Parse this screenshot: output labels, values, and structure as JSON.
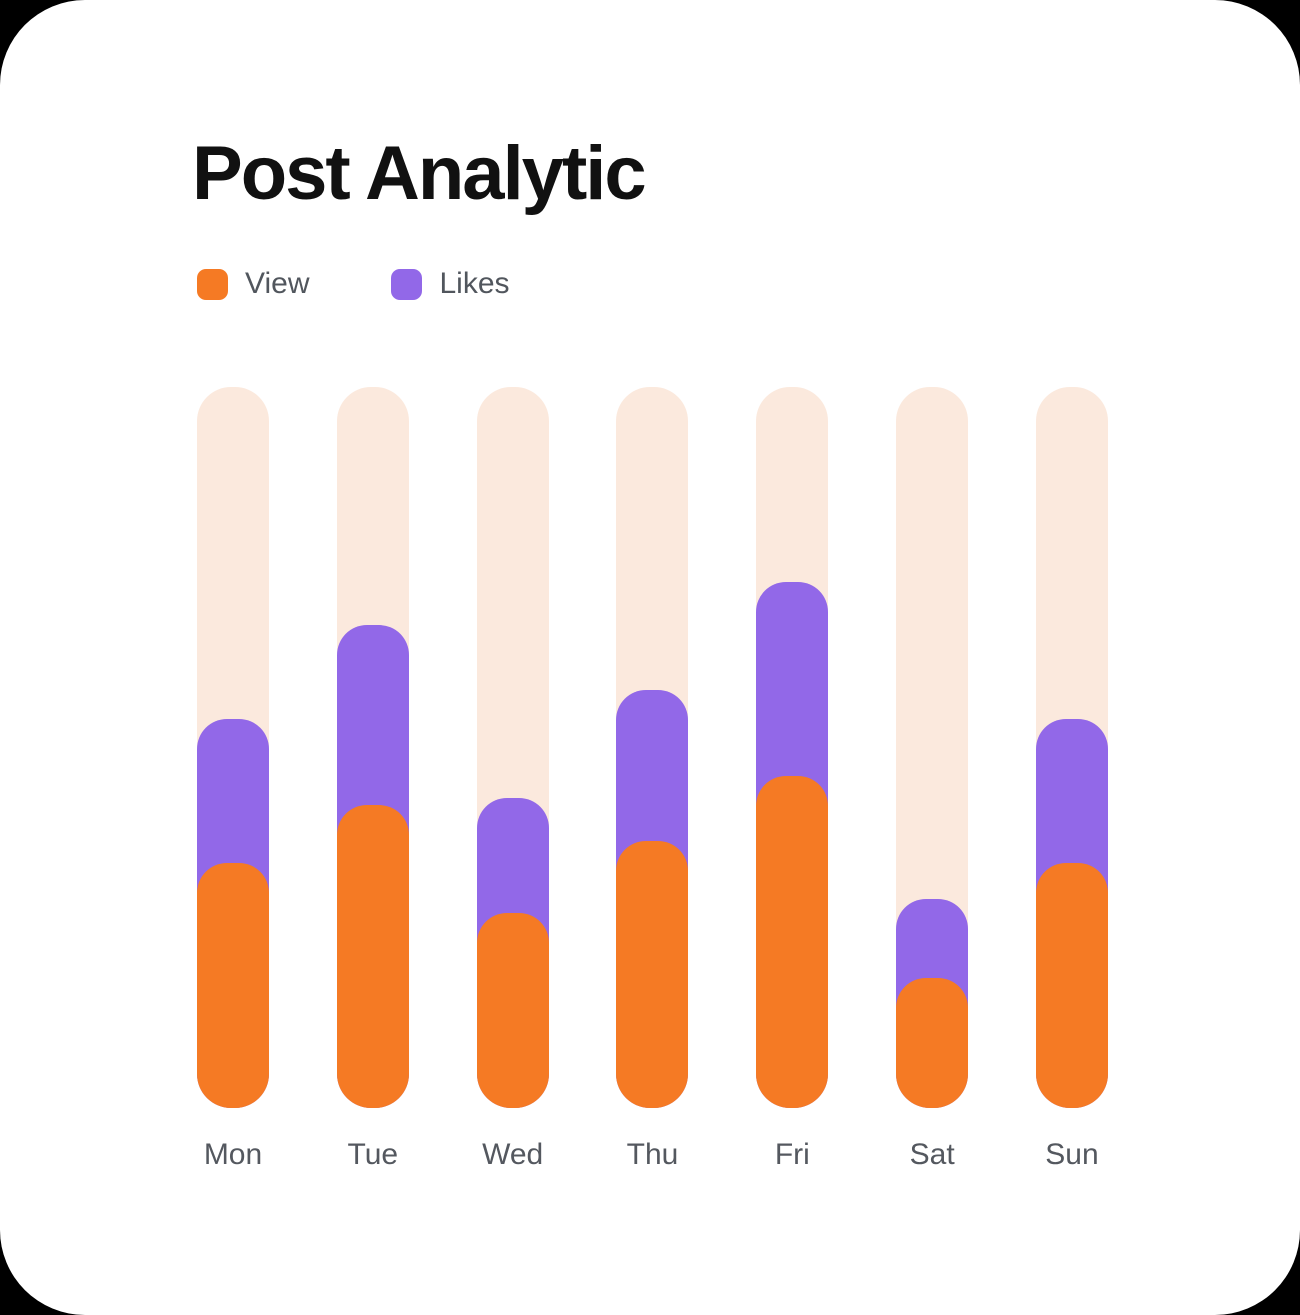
{
  "header": {
    "title": "Post Analytic"
  },
  "legend": {
    "items": [
      {
        "label": "View",
        "color": "#F57A24"
      },
      {
        "label": "Likes",
        "color": "#9268E8"
      }
    ]
  },
  "colors": {
    "view_orange": "#F57A24",
    "likes_purple": "#9268E8",
    "track_peach": "#FBE9DD",
    "card_background": "#FFFFFF",
    "page_background": "#000000",
    "title_text": "#111111",
    "label_gray": "#54585F"
  },
  "chart_data": {
    "type": "bar",
    "stacked": true,
    "title": "Post Analytic",
    "xlabel": "",
    "ylabel": "",
    "categories": [
      "Mon",
      "Tue",
      "Wed",
      "Thu",
      "Fri",
      "Sat",
      "Sun"
    ],
    "series": [
      {
        "name": "View",
        "color": "#F57A24",
        "values": [
          34,
          42,
          27,
          37,
          46,
          18,
          34
        ]
      },
      {
        "name": "Likes",
        "color": "#9268E8",
        "values": [
          20,
          25,
          16,
          21,
          27,
          11,
          20
        ]
      }
    ],
    "units": "percent of full track height",
    "ylim": [
      0,
      100
    ],
    "grid": false,
    "track_color": "#FBE9DD",
    "legend_position": "top-left",
    "bar_style": "rounded vertical pill on full-height peach track"
  }
}
